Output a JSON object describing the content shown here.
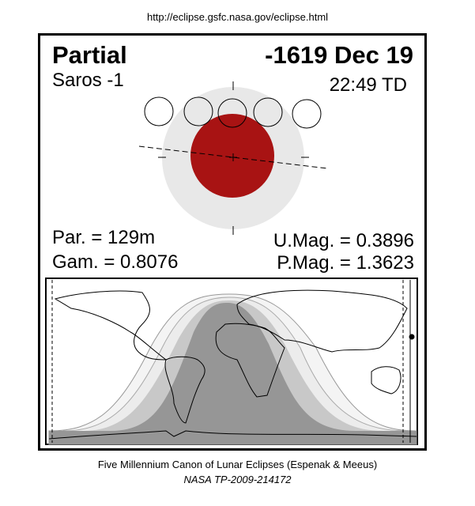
{
  "header_url": "http://eclipse.gsfc.nasa.gov/eclipse.html",
  "eclipse": {
    "type": "Partial",
    "date": "-1619 Dec 19",
    "saros": "Saros  -1",
    "time": "22:49 TD",
    "partial_duration": "Par. = 129m",
    "gamma": "Gam. = 0.8076",
    "umbral_magnitude": "U.Mag. = 0.3896",
    "penumbral_magnitude": "P.Mag. = 1.3623"
  },
  "colors": {
    "umbra": "#a81313",
    "penumbra": "#e8e8e8",
    "map_dark": "#969696",
    "map_mid": "#c8c8c8",
    "map_light": "#ececec"
  },
  "footer": {
    "line1": "Five Millennium Canon of Lunar Eclipses (Espenak & Meeus)",
    "line2": "NASA TP-2009-214172"
  }
}
